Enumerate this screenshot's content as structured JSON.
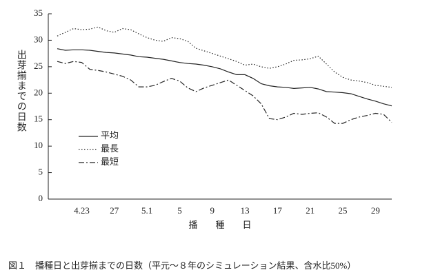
{
  "chart_data": {
    "type": "line",
    "y_label": "出芽揃までの日数",
    "x_label": "播　　種　　日",
    "caption": "図１　播種日と出芽揃までの日数（平元～８年のシミュレーション結果、含水比50%）",
    "categories": [
      null,
      null,
      null,
      "4.23",
      null,
      null,
      null,
      "27",
      null,
      null,
      null,
      "5.1",
      null,
      null,
      null,
      "5",
      null,
      null,
      null,
      "9",
      null,
      null,
      null,
      "13",
      null,
      null,
      null,
      "17",
      null,
      null,
      null,
      "21",
      null,
      null,
      null,
      "25",
      null,
      null,
      null,
      "29",
      null,
      null
    ],
    "ylim": [
      0,
      35
    ],
    "yticks": [
      0,
      5,
      10,
      15,
      20,
      25,
      30,
      35
    ],
    "series": [
      {
        "name": "平均",
        "color": "#222",
        "style": "solid",
        "values": [
          28.4,
          28.1,
          28.2,
          28.2,
          28.1,
          27.9,
          27.7,
          27.6,
          27.4,
          27.2,
          26.9,
          26.8,
          26.6,
          26.4,
          26.1,
          25.8,
          25.6,
          25.5,
          25.3,
          25.0,
          24.6,
          24.0,
          23.5,
          23.5,
          22.8,
          21.8,
          21.4,
          21.2,
          21.1,
          20.9,
          21.0,
          21.1,
          20.8,
          20.3,
          20.2,
          20.1,
          19.9,
          19.4,
          18.9,
          18.5,
          18.0,
          17.6
        ]
      },
      {
        "name": "最長",
        "color": "#222",
        "style": "dotted",
        "values": [
          30.8,
          31.5,
          32.2,
          32.0,
          32.1,
          32.5,
          31.8,
          31.5,
          32.2,
          32.0,
          31.2,
          30.5,
          30.0,
          29.8,
          30.5,
          30.3,
          29.8,
          28.5,
          28.0,
          27.5,
          27.0,
          26.5,
          26.0,
          25.3,
          25.5,
          25.0,
          24.7,
          25.0,
          25.5,
          26.2,
          26.3,
          26.5,
          27.0,
          25.5,
          24.0,
          23.0,
          22.5,
          22.3,
          22.0,
          21.5,
          21.3,
          21.1
        ]
      },
      {
        "name": "最短",
        "color": "#222",
        "style": "dashdot",
        "values": [
          26.0,
          25.6,
          26.0,
          25.8,
          24.5,
          24.3,
          24.0,
          23.6,
          23.2,
          22.5,
          21.2,
          21.2,
          21.5,
          22.2,
          22.8,
          22.3,
          21.0,
          20.3,
          21.0,
          21.5,
          22.0,
          22.5,
          21.5,
          20.5,
          19.5,
          18.0,
          15.2,
          15.0,
          15.5,
          16.2,
          16.0,
          16.2,
          16.3,
          15.5,
          14.3,
          14.3,
          15.0,
          15.5,
          15.8,
          16.2,
          16.0,
          14.5
        ]
      }
    ]
  }
}
